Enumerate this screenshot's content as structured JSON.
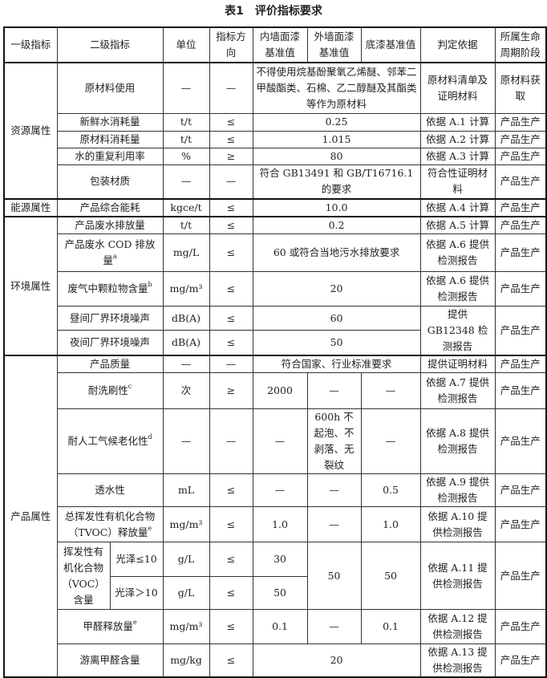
{
  "title": "表1　评价指标要求",
  "header": {
    "level1": "一级指标",
    "level2": "二级指标",
    "unit": "单位",
    "direction": "指标方向",
    "interior": "内墙面漆基准值",
    "exterior": "外墙面漆基准值",
    "primer": "底漆基准值",
    "basis": "判定依据",
    "stage": "所属生命周期阶段"
  },
  "groups": {
    "resource": "资源属性",
    "energy": "能源属性",
    "environment": "环境属性",
    "product": "产品属性"
  },
  "dash": "—",
  "rows": {
    "raw_use": {
      "name": "原材料使用",
      "value": "不得使用烷基酚聚氧乙烯醚、邻苯二甲酸酯类、石棉、乙二醇醚及其酯类等作为原材料",
      "basis": "原材料清单及证明材料",
      "stage": "原材料获取"
    },
    "fresh_water": {
      "name": "新鲜水消耗量",
      "unit": "t/t",
      "dir": "≤",
      "value": "0.25",
      "basis": "依据 A.1 计算",
      "stage": "产品生产"
    },
    "raw_consume": {
      "name": "原材料消耗量",
      "unit": "t/t",
      "dir": "≤",
      "value": "1.015",
      "basis": "依据 A.2 计算",
      "stage": "产品生产"
    },
    "water_reuse": {
      "name": "水的重复利用率",
      "unit": "%",
      "dir": "≥",
      "value": "80",
      "basis": "依据 A.3 计算",
      "stage": "产品生产"
    },
    "packaging": {
      "name": "包装材质",
      "value": "符合 GB13491 和 GB/T16716.1 的要求",
      "basis": "符合性证明材料",
      "stage": "产品生产"
    },
    "energy": {
      "name": "产品综合能耗",
      "unit": "kgce/t",
      "dir": "≤",
      "value": "10.0",
      "basis": "依据 A.4 计算",
      "stage": "产品生产"
    },
    "wastewater": {
      "name": "产品废水排放量",
      "unit": "t/t",
      "dir": "≤",
      "value": "0.2",
      "basis": "依据 A.5 计算",
      "stage": "产品生产"
    },
    "cod": {
      "name": "产品废水 COD 排放量",
      "sup": "a",
      "unit": "mg/L",
      "dir": "≤",
      "value": "60 或符合当地污水排放要求",
      "basis": "依据 A.6 提供检测报告",
      "stage": "产品生产"
    },
    "particulate": {
      "name": "废气中颗粒物含量",
      "sup": "b",
      "unit": "mg/m³",
      "dir": "≤",
      "value": "20",
      "basis": "依据 A.6 提供检测报告",
      "stage": "产品生产"
    },
    "noise_day": {
      "name": "昼间厂界环境噪声",
      "unit": "dB(A)",
      "dir": "≤",
      "value": "60"
    },
    "noise_night": {
      "name": "夜间厂界环境噪声",
      "unit": "dB(A)",
      "dir": "≤",
      "value": "50"
    },
    "noise_basis": "提供 GB12348 检测报告",
    "noise_stage": "产品生产",
    "quality": {
      "name": "产品质量",
      "value": "符合国家、行业标准要求",
      "basis": "提供证明材料",
      "stage": "产品生产"
    },
    "scrub": {
      "name": "耐洗刷性",
      "sup": "c",
      "unit": "次",
      "dir": "≥",
      "interior": "2000",
      "basis": "依据 A.7 提供检测报告",
      "stage": "产品生产"
    },
    "weathering": {
      "name": "耐人工气候老化性",
      "sup": "d",
      "exterior": "600h 不起泡、不剥落、无裂纹",
      "basis": "依据 A.8 提供检测报告",
      "stage": "产品生产"
    },
    "permeability": {
      "name": "透水性",
      "unit": "mL",
      "dir": "≤",
      "primer": "0.5",
      "basis": "依据 A.9 提供检测报告",
      "stage": "产品生产"
    },
    "tvoc": {
      "name": "总挥发性有机化合物（TVOC）释放量",
      "sup": "e",
      "unit": "mg/m³",
      "dir": "≤",
      "interior": "1.0",
      "primer": "1.0",
      "basis": "依据 A.10 提供检测报告",
      "stage": "产品生产"
    },
    "voc": {
      "name": "挥发性有机化合物（VOC）含量",
      "exterior": "50",
      "primer": "50",
      "basis": "依据 A.11 提供检测报告",
      "stage": "产品生产",
      "low": {
        "name": "光泽≤10",
        "unit": "g/L",
        "dir": "≤",
        "interior": "30"
      },
      "high": {
        "name": "光泽＞10",
        "unit": "g/L",
        "dir": "≤",
        "interior": "50"
      }
    },
    "formaldehyde_release": {
      "name": "甲醛释放量",
      "sup": "e",
      "unit": "mg/m³",
      "dir": "≤",
      "interior": "0.1",
      "primer": "0.1",
      "basis": "依据 A.12 提供检测报告",
      "stage": "产品生产"
    },
    "free_formaldehyde": {
      "name": "游离甲醛含量",
      "unit": "mg/kg",
      "dir": "≤",
      "value": "20",
      "basis": "依据 A.13 提供检测报告",
      "stage": "产品生产"
    }
  }
}
